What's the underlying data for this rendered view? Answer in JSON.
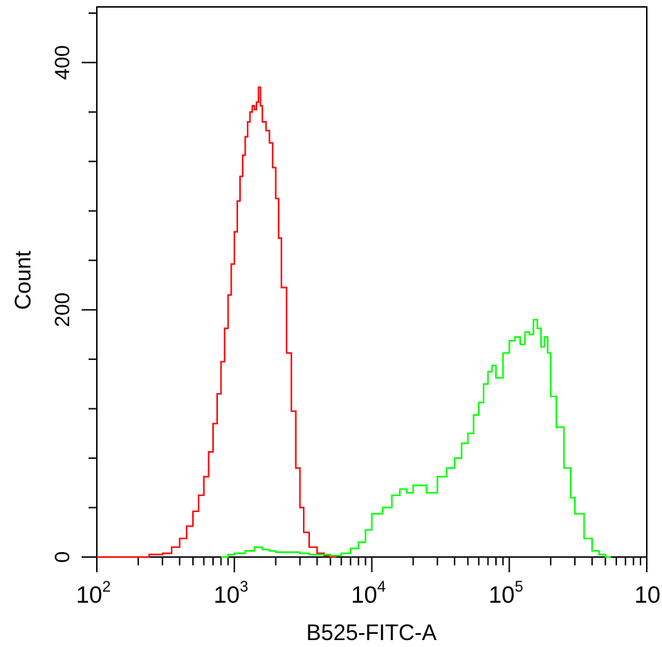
{
  "chart_data": {
    "type": "line",
    "title": "",
    "xlabel": "B525-FITC-A",
    "ylabel": "Count",
    "x_scale": "log",
    "xlim": [
      100,
      1000000
    ],
    "ylim": [
      0,
      445
    ],
    "x_ticks": [
      {
        "base": "10",
        "exp": "2"
      },
      {
        "base": "10",
        "exp": "3"
      },
      {
        "base": "10",
        "exp": "4"
      },
      {
        "base": "10",
        "exp": "5"
      },
      {
        "base": "10",
        "exp": ""
      }
    ],
    "y_ticks": [
      "0",
      "200",
      "400"
    ],
    "grid": false,
    "legend": "none",
    "series": [
      {
        "color": "#ff0000",
        "x": [
          100,
          240,
          300,
          350,
          400,
          450,
          500,
          550,
          600,
          650,
          700,
          750,
          800,
          850,
          900,
          950,
          1000,
          1050,
          1100,
          1150,
          1200,
          1250,
          1300,
          1350,
          1400,
          1450,
          1500,
          1550,
          1600,
          1700,
          1800,
          1900,
          2000,
          2100,
          2200,
          2400,
          2600,
          2800,
          3000,
          3200,
          3500,
          4000,
          4500,
          5000,
          5500
        ],
        "y": [
          0,
          2,
          3,
          8,
          15,
          25,
          37,
          50,
          65,
          85,
          108,
          132,
          158,
          185,
          212,
          237,
          263,
          288,
          308,
          325,
          340,
          352,
          360,
          365,
          362,
          368,
          380,
          365,
          352,
          345,
          335,
          315,
          290,
          258,
          218,
          165,
          118,
          72,
          40,
          20,
          8,
          3,
          1,
          0,
          0
        ]
      },
      {
        "color": "#00ff00",
        "x": [
          800,
          900,
          1000,
          1200,
          1400,
          1600,
          1800,
          2000,
          2500,
          3000,
          3500,
          4000,
          4500,
          5000,
          6000,
          7000,
          8000,
          9000,
          10000,
          12000,
          14000,
          16000,
          18000,
          20000,
          25000,
          30000,
          35000,
          40000,
          45000,
          50000,
          55000,
          60000,
          65000,
          70000,
          75000,
          80000,
          90000,
          100000,
          110000,
          120000,
          130000,
          140000,
          150000,
          160000,
          170000,
          180000,
          190000,
          200000,
          220000,
          250000,
          280000,
          300000,
          350000,
          400000,
          450000,
          500000,
          550000
        ],
        "y": [
          0,
          2,
          3,
          5,
          8,
          6,
          5,
          4,
          4,
          3,
          2,
          2,
          2,
          1,
          3,
          7,
          12,
          22,
          35,
          40,
          50,
          55,
          52,
          58,
          52,
          65,
          72,
          80,
          92,
          100,
          115,
          125,
          140,
          150,
          155,
          145,
          165,
          175,
          178,
          172,
          182,
          180,
          192,
          185,
          170,
          178,
          165,
          130,
          105,
          72,
          48,
          35,
          15,
          5,
          2,
          0,
          0
        ]
      }
    ]
  }
}
